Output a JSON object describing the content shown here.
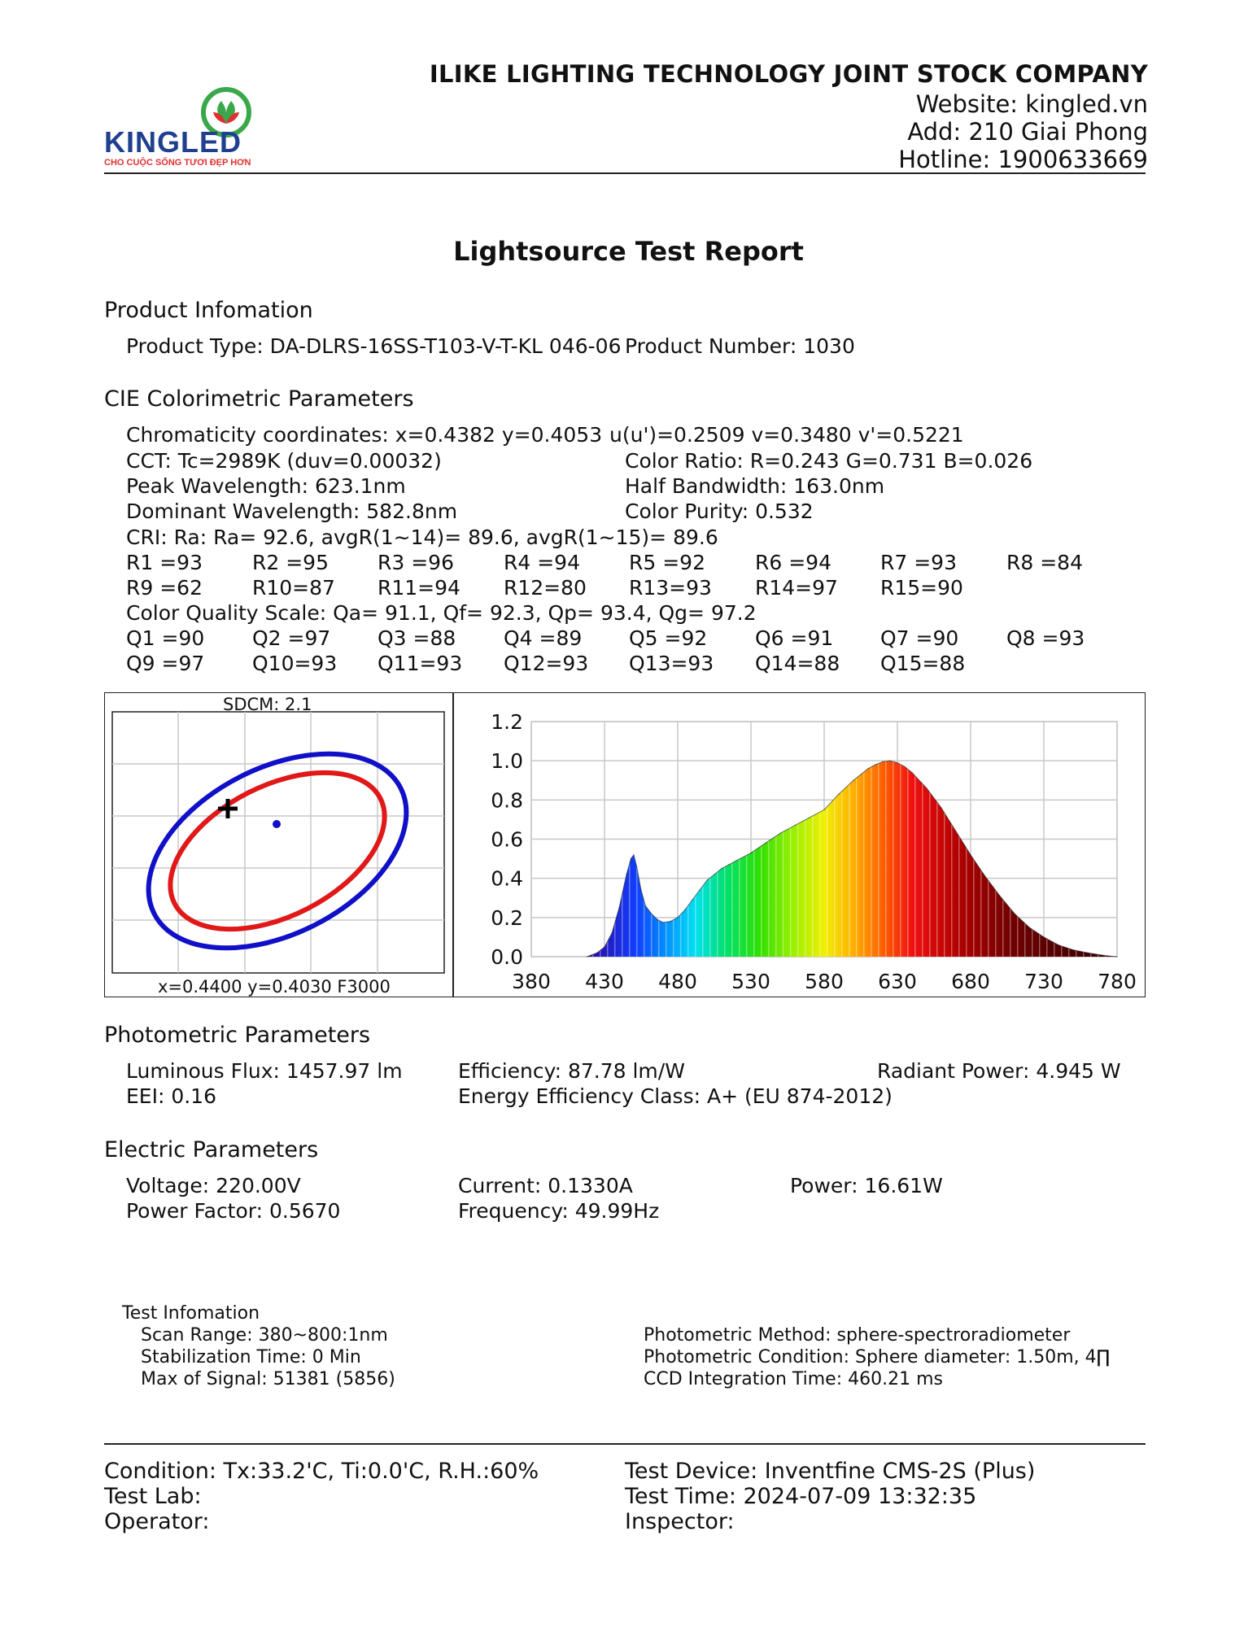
{
  "header": {
    "logo_text": "KINGLED",
    "logo_tagline": "CHO CUỘC SỐNG TƯƠI ĐẸP HƠN",
    "company": "ILIKE LIGHTING TECHNOLOGY JOINT STOCK COMPANY",
    "website": "Website: kingled.vn",
    "address": "Add: 210 Giai Phong",
    "hotline": "Hotline: 1900633669",
    "brand_color": "#1f3f8f",
    "accent_color": "#e03030",
    "leaf_color": "#3aa84a"
  },
  "report_title": "Lightsource Test Report",
  "product": {
    "heading": "Product Infomation",
    "type": "Product Type: DA-DLRS-16SS-T103-V-T-KL 046-06",
    "number": "Product Number: 1030"
  },
  "cie": {
    "heading": "CIE Colorimetric Parameters",
    "chromaticity": "Chromaticity coordinates: x=0.4382 y=0.4053",
    "uv": "u(u')=0.2509 v=0.3480 v'=0.5221",
    "cct": "CCT: Tc=2989K (duv=0.00032)",
    "color_ratio": "Color Ratio: R=0.243  G=0.731  B=0.026",
    "peak": "Peak Wavelength: 623.1nm",
    "half_bw": "Half Bandwidth: 163.0nm",
    "dominant": "Dominant Wavelength: 582.8nm",
    "purity": "Color Purity: 0.532",
    "cri": "CRI: Ra: Ra= 92.6, avgR(1~14)= 89.6, avgR(1~15)= 89.6",
    "r_row1": [
      "R1 =93",
      "R2 =95",
      "R3 =96",
      "R4 =94",
      "R5 =92",
      "R6 =94",
      "R7 =93",
      "R8 =84"
    ],
    "r_row2": [
      "R9 =62",
      "R10=87",
      "R11=94",
      "R12=80",
      "R13=93",
      "R14=97",
      "R15=90"
    ],
    "cqs": "Color Quality Scale: Qa= 91.1, Qf= 92.3, Qp= 93.4, Qg= 97.2",
    "q_row1": [
      "Q1 =90",
      "Q2 =97",
      "Q3 =88",
      "Q4 =89",
      "Q5 =92",
      "Q6 =91",
      "Q7 =90",
      "Q8 =93"
    ],
    "q_row2": [
      "Q9 =97",
      "Q10=93",
      "Q11=93",
      "Q12=93",
      "Q13=93",
      "Q14=88",
      "Q15=88"
    ]
  },
  "sdcm_chart": {
    "title": "SDCM:   2.1",
    "footer": "x=0.4400 y=0.4030 F3000",
    "ellipse_colors": [
      "#1010c8",
      "#e01818"
    ]
  },
  "chart_data": {
    "type": "area",
    "title": "",
    "xlabel": "",
    "ylabel": "",
    "xlim": [
      380,
      780
    ],
    "ylim": [
      0,
      1.2
    ],
    "x_ticks": [
      "380",
      "430",
      "480",
      "530",
      "580",
      "630",
      "680",
      "730",
      "780"
    ],
    "y_ticks": [
      "1.2",
      "1.0",
      "0.8",
      "0.6",
      "0.4",
      "0.2",
      "0.0"
    ],
    "grid": true,
    "x": [
      418,
      425,
      430,
      435,
      440,
      445,
      448,
      450,
      452,
      455,
      458,
      462,
      466,
      470,
      475,
      480,
      485,
      490,
      495,
      500,
      505,
      510,
      515,
      520,
      530,
      540,
      550,
      560,
      570,
      580,
      590,
      600,
      610,
      615,
      620,
      625,
      630,
      635,
      640,
      650,
      660,
      670,
      680,
      690,
      700,
      710,
      720,
      730,
      740,
      750,
      760,
      770,
      775,
      780
    ],
    "y": [
      0.0,
      0.02,
      0.05,
      0.12,
      0.25,
      0.42,
      0.5,
      0.52,
      0.46,
      0.34,
      0.26,
      0.22,
      0.19,
      0.175,
      0.18,
      0.2,
      0.24,
      0.29,
      0.34,
      0.39,
      0.42,
      0.45,
      0.47,
      0.49,
      0.53,
      0.58,
      0.63,
      0.67,
      0.71,
      0.75,
      0.83,
      0.9,
      0.96,
      0.98,
      0.995,
      1.0,
      0.99,
      0.97,
      0.94,
      0.86,
      0.76,
      0.64,
      0.52,
      0.41,
      0.31,
      0.22,
      0.15,
      0.1,
      0.06,
      0.035,
      0.02,
      0.008,
      0.003,
      0.0
    ]
  },
  "photometric": {
    "heading": "Photometric Parameters",
    "flux": "Luminous Flux: 1457.97 lm",
    "efficiency": "Efficiency: 87.78 lm/W",
    "radiant": "Radiant Power: 4.945 W",
    "eei": "EEI:  0.16",
    "energy_class": "Energy Efficiency Class: A+ (EU 874-2012)"
  },
  "electric": {
    "heading": "Electric Parameters",
    "voltage": "Voltage: 220.00V",
    "current": "Current: 0.1330A",
    "power": "Power: 16.61W",
    "pf": "Power Factor: 0.5670",
    "frequency": "Frequency: 49.99Hz"
  },
  "test_info": {
    "heading": "Test Infomation",
    "scan": "Scan Range: 380~800:1nm",
    "stabilization": "Stabilization Time: 0 Min",
    "signal": "Max of Signal: 51381 (5856)",
    "method": "Photometric Method: sphere-spectroradiometer",
    "condition": "Photometric Condition: Sphere diameter: 1.50m, 4∏",
    "ccd": "CCD Integration Time: 460.21 ms"
  },
  "footer": {
    "condition": "Condition: Tx:33.2'C, Ti:0.0'C, R.H.:60%",
    "device": "Test Device: Inventfine CMS-2S (Plus)",
    "lab": "Test Lab:",
    "time": "Test Time: 2024-07-09 13:32:35",
    "operator": "Operator:",
    "inspector": "Inspector:"
  }
}
